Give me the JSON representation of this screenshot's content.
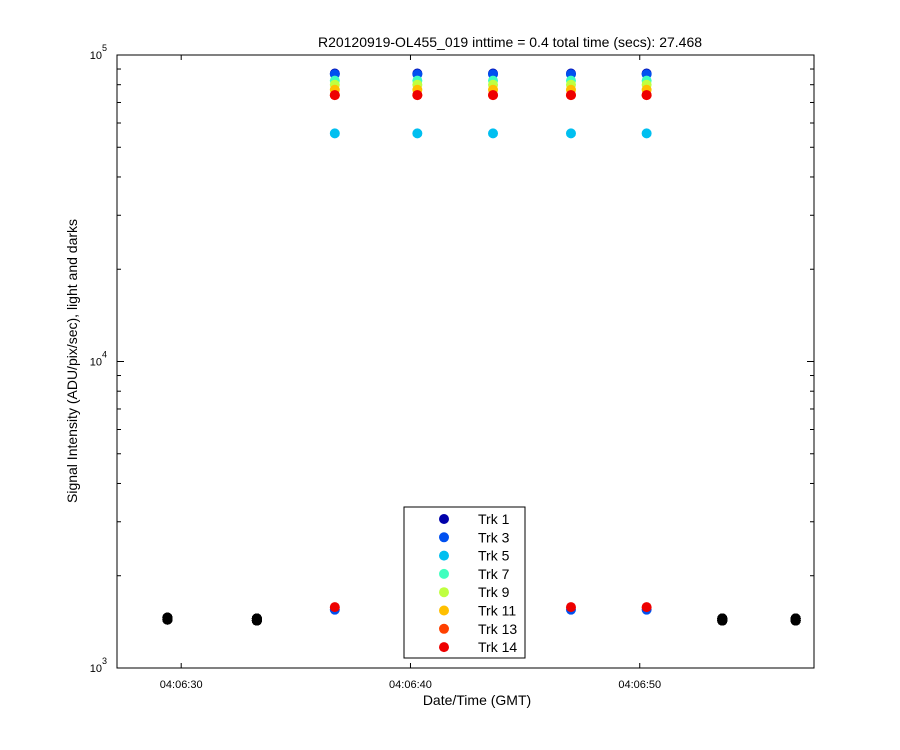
{
  "chart_data": {
    "type": "scatter",
    "title": "R20120919-OL455_019 inttime = 0.4 total time (secs): 27.468",
    "xlabel": "Date/Time (GMT)",
    "ylabel": "Signal Intensity (ADU/pix/sec), light and darks",
    "yscale": "log",
    "ylim": [
      1000,
      100000
    ],
    "xlim": [
      "04:06:27.2",
      "04:06:57.6"
    ],
    "x_ticks": [
      "04:06:30",
      "04:06:40",
      "04:06:50"
    ],
    "y_ticks": [
      {
        "base": "10",
        "exp": "5",
        "value": 100000
      },
      {
        "base": "10",
        "exp": "4",
        "value": 10000
      },
      {
        "base": "10",
        "exp": "3",
        "value": 1000
      }
    ],
    "grid": false,
    "legend_position": "bottom-center",
    "light_times": [
      "04:06:36.7",
      "04:06:40.3",
      "04:06:43.6",
      "04:06:47.0",
      "04:06:50.3"
    ],
    "dark_times": [
      "04:06:29.4",
      "04:06:33.3",
      "04:06:53.6",
      "04:06:56.8"
    ],
    "series": [
      {
        "name": "Trk 1",
        "color": "#0000aa",
        "light": [
          87000,
          87000,
          87000,
          87000,
          87000
        ],
        "dark": [
          1460,
          1450,
          1450,
          1450
        ]
      },
      {
        "name": "Trk 3",
        "color": "#0050f0",
        "light": [
          86500,
          86500,
          86500,
          86500,
          86500
        ],
        "dark": [
          1460,
          1450,
          1450,
          1450
        ]
      },
      {
        "name": "Trk 5",
        "color": "#00bff0",
        "light": [
          55500,
          55500,
          55500,
          55500,
          55500
        ],
        "dark": [
          1460,
          1450,
          1450,
          1450
        ]
      },
      {
        "name": "Trk 7",
        "color": "#40ffbf",
        "light": [
          82500,
          82500,
          82500,
          82500,
          82500
        ],
        "dark": [
          1460,
          1450,
          1450,
          1450
        ]
      },
      {
        "name": "Trk 9",
        "color": "#bfff40",
        "light": [
          80000,
          80000,
          80000,
          80000,
          80000
        ],
        "dark": [
          1460,
          1450,
          1450,
          1450
        ]
      },
      {
        "name": "Trk 11",
        "color": "#ffbf00",
        "light": [
          77000,
          77000,
          77000,
          77000,
          77000
        ],
        "dark": [
          1460,
          1450,
          1450,
          1450
        ]
      },
      {
        "name": "Trk 13",
        "color": "#ff4000",
        "light": [
          74000,
          74000,
          74000,
          74000,
          74000
        ],
        "dark": [
          1460,
          1450,
          1450,
          1450
        ]
      },
      {
        "name": "Trk 14",
        "color": "#ee0000",
        "light": [
          74000,
          74000,
          74000,
          74000,
          74000
        ],
        "dark": [
          1460,
          1450,
          1450,
          1450
        ]
      }
    ],
    "extra_light_points": [
      {
        "time": "04:06:36.7",
        "value": 1550,
        "color": "#0050f0"
      },
      {
        "time": "04:06:36.7",
        "value": 1580,
        "color": "#ee0000"
      },
      {
        "time": "04:06:47.0",
        "value": 1550,
        "color": "#0050f0"
      },
      {
        "time": "04:06:47.0",
        "value": 1580,
        "color": "#ee0000"
      },
      {
        "time": "04:06:50.3",
        "value": 1550,
        "color": "#0050f0"
      },
      {
        "time": "04:06:50.3",
        "value": 1580,
        "color": "#ee0000"
      }
    ],
    "dark_color": "#000000"
  }
}
